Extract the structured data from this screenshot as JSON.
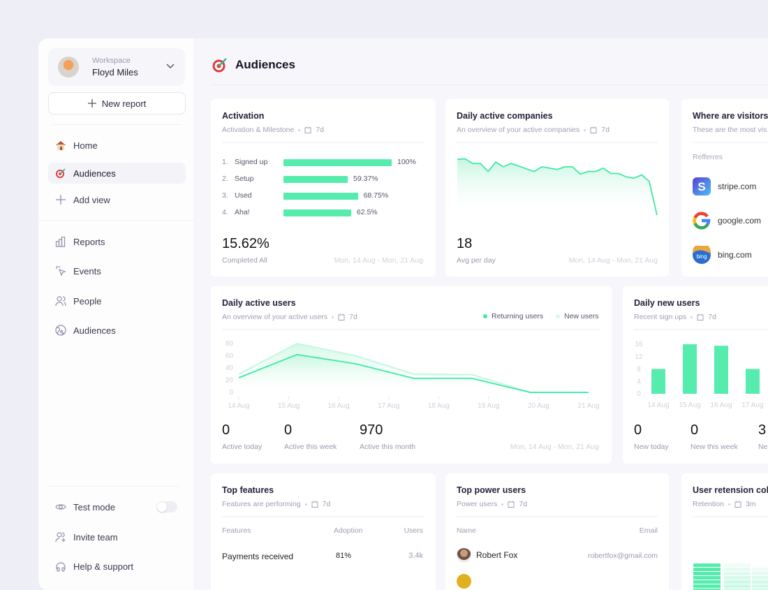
{
  "colors": {
    "accent": "#55ecae",
    "accent_light": "#c8f7e4",
    "text": "#1d1d2b"
  },
  "sidebar": {
    "workspace_label": "Workspace",
    "workspace_name": "Floyd Miles",
    "new_report": "New report",
    "top_items": [
      {
        "label": "Home",
        "icon": "house-icon"
      },
      {
        "label": "Audiences",
        "icon": "target-icon",
        "active": true
      },
      {
        "label": "Add view",
        "icon": "plus-icon"
      }
    ],
    "items": [
      {
        "label": "Reports",
        "icon": "bar-chart-icon"
      },
      {
        "label": "Events",
        "icon": "cursor-click-icon"
      },
      {
        "label": "People",
        "icon": "users-icon"
      },
      {
        "label": "Audiences",
        "icon": "globe-icon"
      }
    ],
    "bottom": [
      {
        "label": "Test mode",
        "icon": "eye-icon",
        "toggle": false
      },
      {
        "label": "Invite team",
        "icon": "user-plus-icon"
      },
      {
        "label": "Help & support",
        "icon": "headphones-icon"
      }
    ]
  },
  "page": {
    "title": "Audiences"
  },
  "activation": {
    "title": "Activation",
    "subtitle": "Activation & Milestone",
    "period": "7d",
    "rows": [
      {
        "n": "1.",
        "label": "Signed up",
        "value": 100,
        "pct": "100%"
      },
      {
        "n": "2.",
        "label": "Setup",
        "value": 59.37,
        "pct": "59.37%"
      },
      {
        "n": "3.",
        "label": "Used",
        "value": 68.75,
        "pct": "68.75%"
      },
      {
        "n": "4.",
        "label": "Aha!",
        "value": 62.5,
        "pct": "62.5%"
      }
    ],
    "big": "15.62%",
    "big_label": "Completed All",
    "range": "Mon, 14 Aug - Mon, 21 Aug"
  },
  "companies": {
    "title": "Daily active companies",
    "subtitle": "An overview of your active companies",
    "period": "7d",
    "big": "18",
    "big_label": "Avg per day",
    "range": "Mon, 14 Aug - Mon, 21 Aug",
    "chart_data": {
      "type": "area",
      "values": [
        83,
        84,
        77,
        77,
        65,
        79,
        72,
        77,
        73,
        69,
        65,
        72,
        70,
        68,
        72,
        72,
        61,
        65,
        65,
        70,
        62,
        62,
        57,
        55,
        60,
        50,
        0
      ]
    }
  },
  "visitors": {
    "title": "Where are visitors",
    "subtitle": "These are the most vis",
    "section": "Refferres",
    "referrers": [
      {
        "name": "stripe.com",
        "icon": "stripe-logo-icon"
      },
      {
        "name": "google.com",
        "icon": "google-logo-icon"
      },
      {
        "name": "bing.com",
        "icon": "bing-logo-icon"
      }
    ]
  },
  "dau": {
    "title": "Daily active users",
    "subtitle": "An overview of your active users",
    "period": "7d",
    "legend": [
      "Returning users",
      "New users"
    ],
    "stats": [
      {
        "value": "0",
        "label": "Active today"
      },
      {
        "value": "0",
        "label": "Active this week"
      },
      {
        "value": "970",
        "label": "Active this month"
      }
    ],
    "range": "Mon, 14 Aug - Mon, 21 Aug",
    "chart_data": {
      "type": "line",
      "x_ticks": [
        "14 Aug",
        "15 Aug",
        "16 Aug",
        "17 Aug",
        "18 Aug",
        "19 Aug",
        "20 Aug",
        "21 Aug"
      ],
      "y_ticks": [
        0,
        20,
        40,
        60,
        80
      ],
      "ylim": [
        0,
        80
      ],
      "series": [
        {
          "name": "Returning users",
          "color": "#3de9a3",
          "values": [
            24,
            62,
            47,
            23,
            23,
            0,
            0
          ]
        },
        {
          "name": "New users",
          "color": "#c8f7e4",
          "values": [
            30,
            80,
            60,
            30,
            29,
            0,
            0
          ]
        }
      ]
    }
  },
  "dnu": {
    "title": "Daily new users",
    "subtitle": "Recent sign ups",
    "period": "7d",
    "stats": [
      {
        "value": "0",
        "label": "New today"
      },
      {
        "value": "0",
        "label": "New this week"
      },
      {
        "value": "3",
        "label": "Ne"
      }
    ],
    "chart_data": {
      "type": "bar",
      "categories": [
        "14 Aug",
        "15 Aug",
        "16 Aug",
        "17 Aug"
      ],
      "values": [
        8,
        16,
        15.5,
        8
      ],
      "y_ticks": [
        0,
        4,
        8,
        12,
        16
      ],
      "ylim": [
        0,
        16
      ]
    }
  },
  "features": {
    "title": "Top features",
    "subtitle": "Features are performing",
    "period": "7d",
    "headers": [
      "Features",
      "Adoption",
      "Users"
    ],
    "rows": [
      {
        "feature": "Payments received",
        "adoption": "81%",
        "users": "3.4k"
      }
    ]
  },
  "power": {
    "title": "Top power users",
    "subtitle": "Power users",
    "period": "7d",
    "headers": [
      "Name",
      "Email"
    ],
    "rows": [
      {
        "name": "Robert Fox",
        "email": "robertfox@gmail.com"
      }
    ]
  },
  "retention": {
    "title": "User retension col",
    "subtitle": "Retention",
    "period": "3m",
    "levels": [
      [
        1,
        0.1,
        0
      ],
      [
        1,
        0.15,
        0.1
      ],
      [
        1,
        0.2,
        0.15
      ],
      [
        1,
        0.25,
        0.2
      ],
      [
        1,
        0.3,
        0.25
      ],
      [
        1,
        0.3,
        0.25
      ],
      [
        1,
        0.3,
        0.3
      ],
      [
        1,
        0.3,
        0.3
      ],
      [
        1,
        0.3,
        0.3
      ],
      [
        1,
        0.3,
        0.3
      ],
      [
        1,
        0.3,
        0.3
      ],
      [
        1,
        0.3,
        0.3
      ]
    ]
  }
}
